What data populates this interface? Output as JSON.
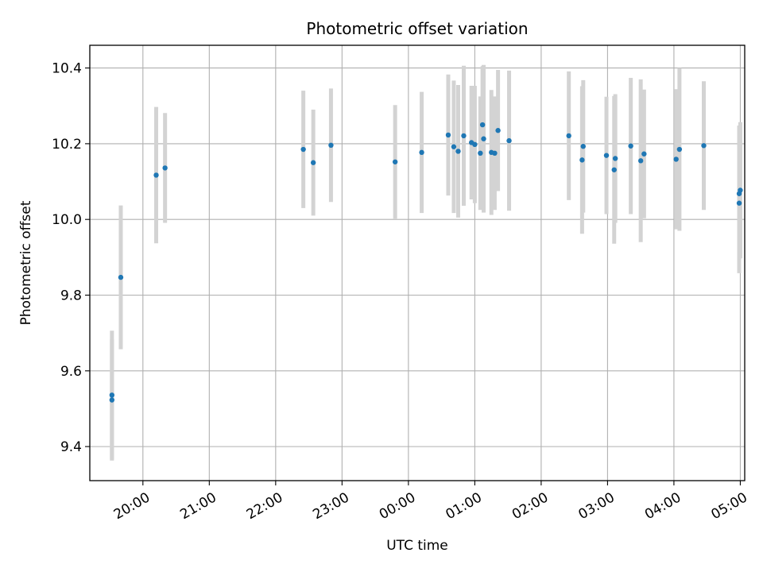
{
  "chart_data": {
    "type": "scatter",
    "title": "Photometric offset variation",
    "xlabel": "UTC time",
    "ylabel": "Photometric offset",
    "x_ticks": [
      "20:00",
      "21:00",
      "22:00",
      "23:00",
      "00:00",
      "01:00",
      "02:00",
      "03:00",
      "04:00",
      "05:00"
    ],
    "y_ticks": [
      "9.4",
      "9.6",
      "9.8",
      "10.0",
      "10.2",
      "10.4"
    ],
    "xlim": [
      "19:12",
      "05:04"
    ],
    "ylim": [
      9.31,
      10.46
    ],
    "grid": true,
    "series": [
      {
        "marker_color": "#1f77b4",
        "errorbar_color": "#d3d3d3",
        "points": [
          {
            "x": "19:32",
            "y": 9.523,
            "yerr": 0.16
          },
          {
            "x": "19:32",
            "y": 9.536,
            "yerr": 0.17
          },
          {
            "x": "19:40",
            "y": 9.847,
            "yerr": 0.19
          },
          {
            "x": "20:12",
            "y": 10.117,
            "yerr": 0.18
          },
          {
            "x": "20:20",
            "y": 10.136,
            "yerr": 0.145
          },
          {
            "x": "22:25",
            "y": 10.185,
            "yerr": 0.155
          },
          {
            "x": "22:34",
            "y": 10.15,
            "yerr": 0.14
          },
          {
            "x": "22:50",
            "y": 10.196,
            "yerr": 0.15
          },
          {
            "x": "23:48",
            "y": 10.152,
            "yerr": 0.15
          },
          {
            "x": "00:12",
            "y": 10.177,
            "yerr": 0.16
          },
          {
            "x": "00:36",
            "y": 10.223,
            "yerr": 0.16
          },
          {
            "x": "00:41",
            "y": 10.192,
            "yerr": 0.175
          },
          {
            "x": "00:45",
            "y": 10.18,
            "yerr": 0.175
          },
          {
            "x": "00:50",
            "y": 10.221,
            "yerr": 0.185
          },
          {
            "x": "00:57",
            "y": 10.203,
            "yerr": 0.15
          },
          {
            "x": "01:00",
            "y": 10.198,
            "yerr": 0.155
          },
          {
            "x": "01:05",
            "y": 10.175,
            "yerr": 0.15
          },
          {
            "x": "01:07",
            "y": 10.25,
            "yerr": 0.155
          },
          {
            "x": "01:08",
            "y": 10.213,
            "yerr": 0.195
          },
          {
            "x": "01:15",
            "y": 10.177,
            "yerr": 0.165
          },
          {
            "x": "01:18",
            "y": 10.175,
            "yerr": 0.15
          },
          {
            "x": "01:21",
            "y": 10.235,
            "yerr": 0.16
          },
          {
            "x": "01:31",
            "y": 10.208,
            "yerr": 0.185
          },
          {
            "x": "02:25",
            "y": 10.221,
            "yerr": 0.17
          },
          {
            "x": "02:37",
            "y": 10.157,
            "yerr": 0.195
          },
          {
            "x": "02:38",
            "y": 10.193,
            "yerr": 0.175
          },
          {
            "x": "02:59",
            "y": 10.169,
            "yerr": 0.155
          },
          {
            "x": "03:06",
            "y": 10.131,
            "yerr": 0.195
          },
          {
            "x": "03:07",
            "y": 10.161,
            "yerr": 0.17
          },
          {
            "x": "03:21",
            "y": 10.194,
            "yerr": 0.18
          },
          {
            "x": "03:30",
            "y": 10.155,
            "yerr": 0.215
          },
          {
            "x": "03:33",
            "y": 10.173,
            "yerr": 0.17
          },
          {
            "x": "04:02",
            "y": 10.159,
            "yerr": 0.185
          },
          {
            "x": "04:05",
            "y": 10.185,
            "yerr": 0.215
          },
          {
            "x": "04:27",
            "y": 10.195,
            "yerr": 0.17
          },
          {
            "x": "04:59",
            "y": 10.068,
            "yerr": 0.18
          },
          {
            "x": "04:59",
            "y": 10.043,
            "yerr": 0.185
          },
          {
            "x": "05:00",
            "y": 10.077,
            "yerr": 0.18
          }
        ]
      }
    ]
  }
}
